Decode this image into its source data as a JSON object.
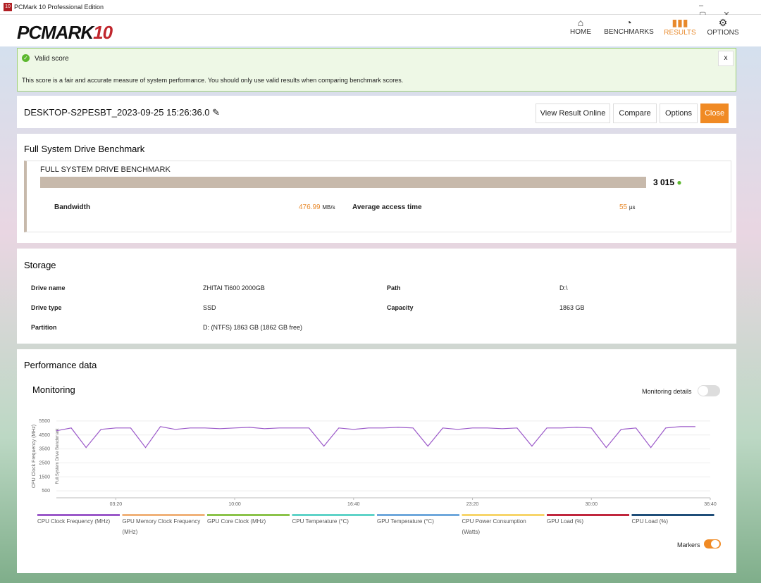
{
  "window": {
    "icon": "10",
    "title": "PCMark 10 Professional Edition"
  },
  "header": {
    "logo": "PCMARK",
    "logo_number": "10",
    "nav": [
      "HOME",
      "BENCHMARKS",
      "RESULTS",
      "OPTIONS"
    ]
  },
  "notice": {
    "title": "Valid score",
    "text": "This score is a fair and accurate measure of system performance. You should only use valid results when comparing benchmark scores.",
    "close": "x"
  },
  "result": {
    "name": "DESKTOP-S2PESBT_2023-09-25 15:26:36.0",
    "buttons": [
      "View Result Online",
      "Compare",
      "Options",
      "Close"
    ]
  },
  "benchmark": {
    "heading": "Full System Drive Benchmark",
    "name": "FULL SYSTEM DRIVE BENCHMARK",
    "score": "3 015",
    "metrics": [
      {
        "label": "Bandwidth",
        "value": "476.99",
        "unit": "MB/s"
      },
      {
        "label": "Average access time",
        "value": "55",
        "unit": "µs"
      }
    ]
  },
  "storage": {
    "heading": "Storage",
    "fields": [
      [
        "Drive name",
        "ZHITAI Ti600 2000GB"
      ],
      [
        "Path",
        "D:\\"
      ],
      [
        "Drive type",
        "SSD"
      ],
      [
        "Capacity",
        "1863 GB"
      ],
      [
        "Partition",
        "D: (NTFS) 1863 GB (1862 GB free)"
      ]
    ]
  },
  "performance": {
    "heading": "Performance data",
    "monitoring": "Monitoring",
    "details_toggle": "Monitoring details",
    "markers_toggle": "Markers",
    "chart_data": {
      "type": "line",
      "y_label": "CPU Clock Frequency (MHz)",
      "overlay_label": "Full System Drive Benchmark",
      "x": [
        0,
        50,
        100,
        150,
        200,
        250,
        300,
        350,
        400,
        450,
        500,
        550,
        600,
        650,
        700,
        750,
        800,
        850,
        900,
        950,
        1000,
        1050,
        1100,
        1150,
        1200,
        1250,
        1300,
        1350,
        1400,
        1450,
        1500,
        1550,
        1600,
        1650,
        1700,
        1750,
        1800,
        1850,
        1900,
        1950,
        2000,
        2050,
        2100,
        2150
      ],
      "series": [
        {
          "name": "CPU Clock Frequency (MHz)",
          "color": "#9b59c9",
          "values": [
            4800,
            5000,
            3600,
            4900,
            5000,
            5000,
            3600,
            5100,
            4900,
            5000,
            5000,
            4950,
            5000,
            5050,
            4950,
            5000,
            5000,
            5000,
            3700,
            5000,
            4900,
            5000,
            5000,
            5050,
            5000,
            3700,
            5000,
            4900,
            5000,
            5000,
            4950,
            5000,
            3700,
            5000,
            5000,
            5050,
            5000,
            3600,
            4900,
            5000,
            3600,
            5000,
            5100,
            5100
          ]
        }
      ],
      "xlim": [
        0,
        2200
      ],
      "xticks": [
        {
          "value": 200,
          "label": "03:20"
        },
        {
          "value": 600,
          "label": "10:00"
        },
        {
          "value": 1000,
          "label": "16:40"
        },
        {
          "value": 1400,
          "label": "23:20"
        },
        {
          "value": 1800,
          "label": "30:00"
        },
        {
          "value": 2200,
          "label": "36:40"
        }
      ],
      "ylim": [
        0,
        6000
      ],
      "yticks": [
        500,
        1500,
        2500,
        3500,
        4500,
        5500
      ],
      "grid": true,
      "legend_extra": [
        {
          "name": "GPU Memory Clock Frequency (MHz)",
          "color": "#f0b27a"
        },
        {
          "name": "GPU Core Clock (MHz)",
          "color": "#8bc34a"
        },
        {
          "name": "CPU Temperature (°C)",
          "color": "#5fd3c8"
        },
        {
          "name": "GPU Temperature (°C)",
          "color": "#6fa8dc"
        },
        {
          "name": "CPU Power Consumption (Watts)",
          "color": "#f7d56b"
        },
        {
          "name": "GPU Load (%)",
          "color": "#c0263d"
        },
        {
          "name": "CPU Load (%)",
          "color": "#1f4e79"
        }
      ]
    }
  }
}
